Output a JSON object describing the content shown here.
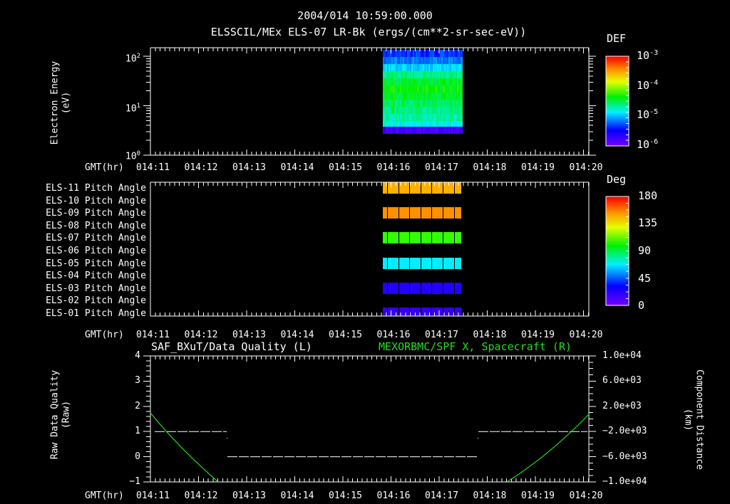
{
  "header": {
    "timestamp": "2004/014 10:59:00.000",
    "title": "ELSSCIL/MEx ELS-07 LR-Bk  (ergs/(cm**2-sr-sec-eV))"
  },
  "colors": {
    "background": "#000000",
    "axes": "#ffffff",
    "trace_green": "#22dd22",
    "pitch_orange_light": "#ffb000",
    "pitch_orange": "#ff9000",
    "pitch_green": "#33ff00",
    "pitch_cyan": "#00eeff",
    "pitch_blue": "#2200ff",
    "pitch_violet": "#3300ee"
  },
  "x_axis": {
    "label": "GMT(hr)",
    "ticks": [
      "014:11",
      "014:12",
      "014:13",
      "014:14",
      "014:15",
      "014:16",
      "014:17",
      "014:18",
      "014:19",
      "014:20"
    ]
  },
  "chart_data": [
    {
      "type": "heatmap",
      "title": "ELSSCIL/MEx ELS-07 LR-Bk  (ergs/(cm**2-sr-sec-eV))",
      "ylabel": "Electron Energy (eV)",
      "xlabel": "GMT(hr)",
      "y_scale": "log",
      "y_ticks": [
        "10^0",
        "10^1",
        "10^2"
      ],
      "ylim": [
        1,
        150
      ],
      "x_ticks": [
        "014:11",
        "014:12",
        "014:13",
        "014:14",
        "014:15",
        "014:16",
        "014:17",
        "014:18",
        "014:19",
        "014:20"
      ],
      "data_extent": {
        "x_start": "014:15.8",
        "x_end": "014:17.4",
        "energy_min_eV": 3,
        "energy_max_eV": 150
      },
      "colorbar": {
        "label": "DEF",
        "scale": "log",
        "ticks": [
          "10^-6",
          "10^-5",
          "10^-4",
          "10^-3"
        ],
        "range": [
          1e-06,
          0.001
        ]
      },
      "description_rows": [
        {
          "energy": "~130 eV",
          "level": "~3e-6 (blue)"
        },
        {
          "energy": "~80 eV",
          "level": "~1e-5 (cyan)"
        },
        {
          "energy": "~20-50 eV",
          "level": "~1e-4 (green)"
        },
        {
          "energy": "~5-10 eV",
          "level": "~2e-5 (cyan-green)"
        },
        {
          "energy": "~3 eV",
          "level": "~2e-6 (violet)"
        }
      ]
    },
    {
      "type": "heatmap",
      "title": "ELS Pitch Angles",
      "xlabel": "GMT(hr)",
      "rows": [
        "ELS-11 Pitch Angle",
        "ELS-10 Pitch Angle",
        "ELS-09 Pitch Angle",
        "ELS-08 Pitch Angle",
        "ELS-07 Pitch Angle",
        "ELS-06 Pitch Angle",
        "ELS-05 Pitch Angle",
        "ELS-04 Pitch Angle",
        "ELS-03 Pitch Angle",
        "ELS-02 Pitch Angle",
        "ELS-01 Pitch Angle"
      ],
      "row_values_deg": [
        150,
        null,
        145,
        null,
        100,
        null,
        75,
        null,
        30,
        null,
        25
      ],
      "data_extent": {
        "x_start": "014:15.8",
        "x_end": "014:17.4"
      },
      "colorbar": {
        "label": "Deg",
        "ticks": [
          "0",
          "45",
          "90",
          "135",
          "180"
        ],
        "range": [
          0,
          180
        ]
      }
    },
    {
      "type": "line",
      "title_left": "SAF_BXuT/Data Quality (L)",
      "title_right": "MEXORBMC/SPF X, Spacecraft (R)",
      "ylabel_left": "Raw Data Quality (Raw)",
      "ylabel_right": "Component Distance (km)",
      "xlabel": "GMT(hr)",
      "ylim_left": [
        -1,
        4
      ],
      "y_ticks_left": [
        "-1",
        "0",
        "1",
        "2",
        "3",
        "4"
      ],
      "ylim_right": [
        -10000,
        10000
      ],
      "y_ticks_right": [
        "1.0e+04",
        "6.0e+03",
        "2.0e+03",
        "-2.0e+03",
        "-6.0e+03",
        "-1.0e+04"
      ],
      "series": [
        {
          "name": "SAF_BXuT/Data Quality",
          "axis": "left",
          "color": "#ffffff",
          "style": "dashed",
          "x": [
            "014:11.1",
            "014:12.6",
            "014:12.6",
            "014:17.8",
            "014:17.8",
            "014:20"
          ],
          "values": [
            1,
            1,
            0,
            0,
            1,
            1
          ]
        },
        {
          "name": "MEXORBMC/SPF X, Spacecraft",
          "axis": "right",
          "color": "#22dd22",
          "x": [
            "014:11",
            "014:11.5",
            "014:12",
            "014:12.5",
            "014:18",
            "014:18.5",
            "014:19",
            "014:19.5",
            "014:20"
          ],
          "values": [
            1800,
            -1500,
            -6500,
            -10000,
            -10000,
            -6500,
            -3000,
            200,
            1800
          ]
        }
      ]
    }
  ],
  "panel1": {
    "ylabel_line1": "Electron Energy",
    "ylabel_line2": "(eV)",
    "y_ticks": [
      {
        "base": "10",
        "exp": "2"
      },
      {
        "base": "10",
        "exp": "1"
      },
      {
        "base": "10",
        "exp": "0"
      }
    ],
    "colorbar": {
      "label": "DEF",
      "ticks": [
        {
          "base": "10",
          "exp": "-3"
        },
        {
          "base": "10",
          "exp": "-4"
        },
        {
          "base": "10",
          "exp": "-5"
        },
        {
          "base": "10",
          "exp": "-6"
        }
      ]
    }
  },
  "panel2": {
    "rows": [
      "ELS-11 Pitch Angle",
      "ELS-10 Pitch Angle",
      "ELS-09 Pitch Angle",
      "ELS-08 Pitch Angle",
      "ELS-07 Pitch Angle",
      "ELS-06 Pitch Angle",
      "ELS-05 Pitch Angle",
      "ELS-04 Pitch Angle",
      "ELS-03 Pitch Angle",
      "ELS-02 Pitch Angle",
      "ELS-01 Pitch Angle"
    ],
    "colorbar": {
      "label": "Deg",
      "ticks": [
        "180",
        "135",
        "90",
        "45",
        "0"
      ]
    }
  },
  "panel3": {
    "title_left": "SAF_BXuT/Data Quality (L)",
    "title_right": "MEXORBMC/SPF X, Spacecraft (R)",
    "ylabel_left_line1": "Raw Data Quality",
    "ylabel_left_line2": "(Raw)",
    "ylabel_right_line1": "Component Distance",
    "ylabel_right_line2": "(km)",
    "y_ticks_left": [
      "4",
      "3",
      "2",
      "1",
      "0",
      "−1"
    ],
    "y_ticks_right": [
      "1.0e+04",
      "6.0e+03",
      "2.0e+03",
      "−2.0e+03",
      "−6.0e+03",
      "−1.0e+04"
    ]
  }
}
